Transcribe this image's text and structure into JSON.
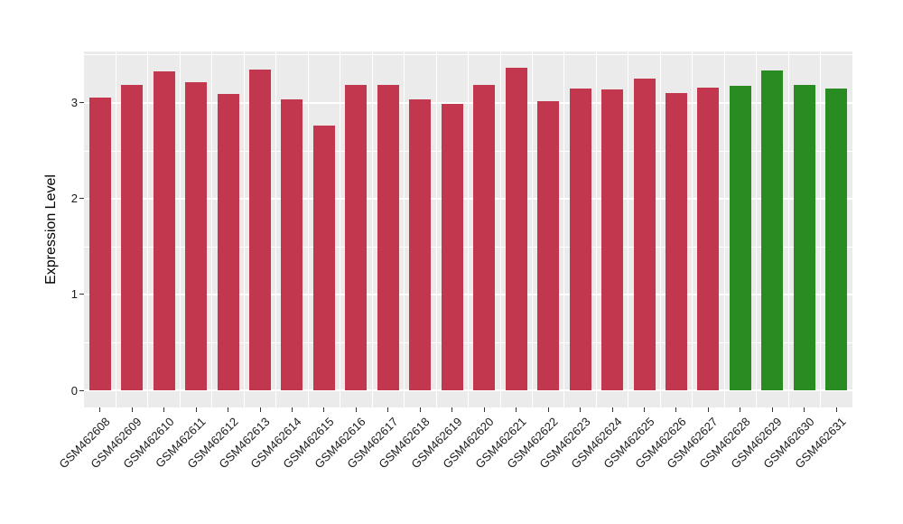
{
  "chart_data": {
    "type": "bar",
    "title": "",
    "xlabel": "",
    "ylabel": "Expression Level",
    "categories": [
      "GSM462608",
      "GSM462609",
      "GSM462610",
      "GSM462611",
      "GSM462612",
      "GSM462613",
      "GSM462614",
      "GSM462615",
      "GSM462616",
      "GSM462617",
      "GSM462618",
      "GSM462619",
      "GSM462620",
      "GSM462621",
      "GSM462622",
      "GSM462623",
      "GSM462624",
      "GSM462625",
      "GSM462626",
      "GSM462627",
      "GSM462628",
      "GSM462629",
      "GSM462630",
      "GSM462631"
    ],
    "values": [
      3.06,
      3.19,
      3.33,
      3.22,
      3.09,
      3.35,
      3.04,
      2.76,
      3.19,
      3.19,
      3.04,
      2.99,
      3.19,
      3.37,
      3.02,
      3.15,
      3.14,
      3.25,
      3.1,
      3.16,
      3.18,
      3.34,
      3.19,
      3.15
    ],
    "groups": [
      0,
      0,
      0,
      0,
      0,
      0,
      0,
      0,
      0,
      0,
      0,
      0,
      0,
      0,
      0,
      0,
      0,
      0,
      0,
      0,
      1,
      1,
      1,
      1
    ],
    "group_colors": [
      "#C2374E",
      "#288C23"
    ],
    "y_ticks": [
      "0",
      "1",
      "2",
      "3"
    ],
    "y_tick_values": [
      0,
      1,
      2,
      3
    ],
    "y_minor_values": [
      0.5,
      1.5,
      2.5,
      3.5
    ],
    "ylim": [
      -0.179,
      3.537
    ],
    "grid": true,
    "legend": "none",
    "colors": {
      "panel_bg": "#EBEBEB",
      "grid": "#FFFFFF",
      "tick": "#333333",
      "text": "#1a1a1a",
      "figure_bg": "#FFFFFF"
    }
  }
}
